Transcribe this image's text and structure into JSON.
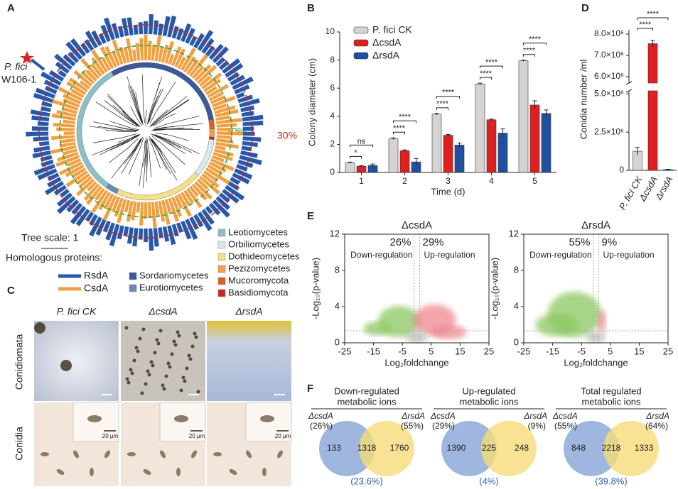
{
  "panels": {
    "a": "A",
    "b": "B",
    "c": "C",
    "d": "D",
    "e": "E",
    "f": "F"
  },
  "phylogeny": {
    "highlight": [
      "P. fici",
      "W106-1"
    ],
    "ring_labels": [
      "30%",
      "30%"
    ],
    "tree_scale": "Tree scale: 1",
    "homologous_label": "Homologous proteins:",
    "proteins": [
      {
        "name": "RsdA",
        "color": "#2a58a8"
      },
      {
        "name": "CsdA",
        "color": "#f0a040"
      }
    ],
    "classes": [
      {
        "name": "Sordariomycetes",
        "color": "#3a5a9a"
      },
      {
        "name": "Eurotiomycetes",
        "color": "#6a8ab8"
      },
      {
        "name": "Leotiomycetes",
        "color": "#8cc0c8"
      },
      {
        "name": "Orbiliomycetes",
        "color": "#d6ecec"
      },
      {
        "name": "Dothideomycetes",
        "color": "#f5e08a"
      },
      {
        "name": "Pezizomycetes",
        "color": "#f0a050"
      },
      {
        "name": "Mucoromycota",
        "color": "#e06020"
      },
      {
        "name": "Basidiomycota",
        "color": "#d02020"
      }
    ]
  },
  "chart_data": [
    {
      "type": "bar",
      "ylabel": "Colony diameter (cm)",
      "xlabel": "Time (d)",
      "categories": [
        1,
        2,
        3,
        4,
        5
      ],
      "series": [
        {
          "name": "P. fici CK",
          "color": "#d4d4d4",
          "values": [
            0.7,
            2.4,
            4.15,
            6.3,
            7.95
          ],
          "errors": [
            0.04,
            0.06,
            0.05,
            0.06,
            0.04
          ]
        },
        {
          "name": "ΔcsdA",
          "color": "#e02020",
          "values": [
            0.45,
            1.55,
            2.65,
            3.75,
            4.8
          ],
          "errors": [
            0.04,
            0.06,
            0.05,
            0.05,
            0.3
          ]
        },
        {
          "name": "ΔrsdA",
          "color": "#2050a0",
          "values": [
            0.5,
            0.75,
            1.95,
            2.8,
            4.2
          ],
          "errors": [
            0.1,
            0.25,
            0.15,
            0.3,
            0.25
          ]
        }
      ],
      "ylim": [
        0,
        10
      ],
      "yticks": [
        0,
        2,
        4,
        6,
        8,
        10
      ],
      "significance": [
        "*",
        "ns",
        "****",
        "****",
        "****",
        "****",
        "****",
        "****",
        "****",
        "****"
      ]
    },
    {
      "type": "broken-bar",
      "ylabel": "Conidia number /ml",
      "categories": [
        "P. fici CK",
        "ΔcsdA",
        "ΔrsdA"
      ],
      "values": [
        1250000,
        7550000,
        50000
      ],
      "errors": [
        250000,
        150000,
        20000
      ],
      "colors": [
        "#d4d4d4",
        "#e02020",
        "#2050a0"
      ],
      "lower_ylim": [
        0,
        5200000
      ],
      "upper_ylim": [
        5700000,
        8200000
      ],
      "yticks": [
        0,
        {
          "value": 2500000,
          "label": "2.5×10⁶"
        },
        {
          "value": 5000000,
          "label": "5.0×10⁶"
        },
        {
          "value": 6000000,
          "label": "6.0×10⁶"
        },
        {
          "value": 7000000,
          "label": "7.0×10⁶"
        },
        {
          "value": 8000000,
          "label": "8.0×10⁶"
        }
      ],
      "significance": [
        "****",
        "****"
      ]
    },
    {
      "type": "volcano",
      "title": "ΔcsdA",
      "xlabel": "Log₂foldchange",
      "ylabel": "-Log₁₀(p-value)",
      "xlim": [
        -25,
        25
      ],
      "xticks": [
        -25,
        -15,
        -5,
        5,
        15,
        25
      ],
      "ylim": [
        0,
        12
      ],
      "yticks": [
        0,
        4,
        8,
        12
      ],
      "down_pct": "26%",
      "up_pct": "29%",
      "down_label": "Down-regulation",
      "up_label": "Up-regulation"
    },
    {
      "type": "volcano",
      "title": "ΔrsdA",
      "xlabel": "Log₂foldchange",
      "ylabel": "-Log₁₀(p-value)",
      "xlim": [
        -25,
        25
      ],
      "xticks": [
        -25,
        -15,
        -5,
        5,
        15,
        25
      ],
      "ylim": [
        0,
        12
      ],
      "yticks": [
        0,
        4,
        8,
        12
      ],
      "down_pct": "55%",
      "up_pct": "9%",
      "down_label": "Down-regulation",
      "up_label": "Up-regulation"
    }
  ],
  "micrographs": {
    "columns": [
      "P. fici CK",
      "ΔcsdA",
      "ΔrsdA"
    ],
    "rows": [
      "Conidiomata",
      "Conidia"
    ],
    "scale": [
      "20 µm",
      "20 µm",
      "20 µm"
    ]
  },
  "venns": [
    {
      "title": [
        "Down-regulated",
        "metabolic ions"
      ],
      "left": "ΔcsdA",
      "left_pct": "(26%)",
      "right": "ΔrsdA",
      "right_pct": "(55%)",
      "counts": [
        133,
        1318,
        1760
      ],
      "overlap_pct": "(23.6%)"
    },
    {
      "title": [
        "Up-regulated",
        "metabolic ions"
      ],
      "left": "ΔcsdA",
      "left_pct": "(29%)",
      "right": "ΔrsdA",
      "right_pct": "(9%)",
      "counts": [
        1390,
        225,
        248
      ],
      "overlap_pct": "(4%)"
    },
    {
      "title": [
        "Total regulated",
        "metabolic ions"
      ],
      "left": "ΔcsdA",
      "left_pct": "(55%)",
      "right": "ΔrsdA",
      "right_pct": "(64%)",
      "counts": [
        848,
        2218,
        1333
      ],
      "overlap_pct": "(39.8%)"
    }
  ]
}
